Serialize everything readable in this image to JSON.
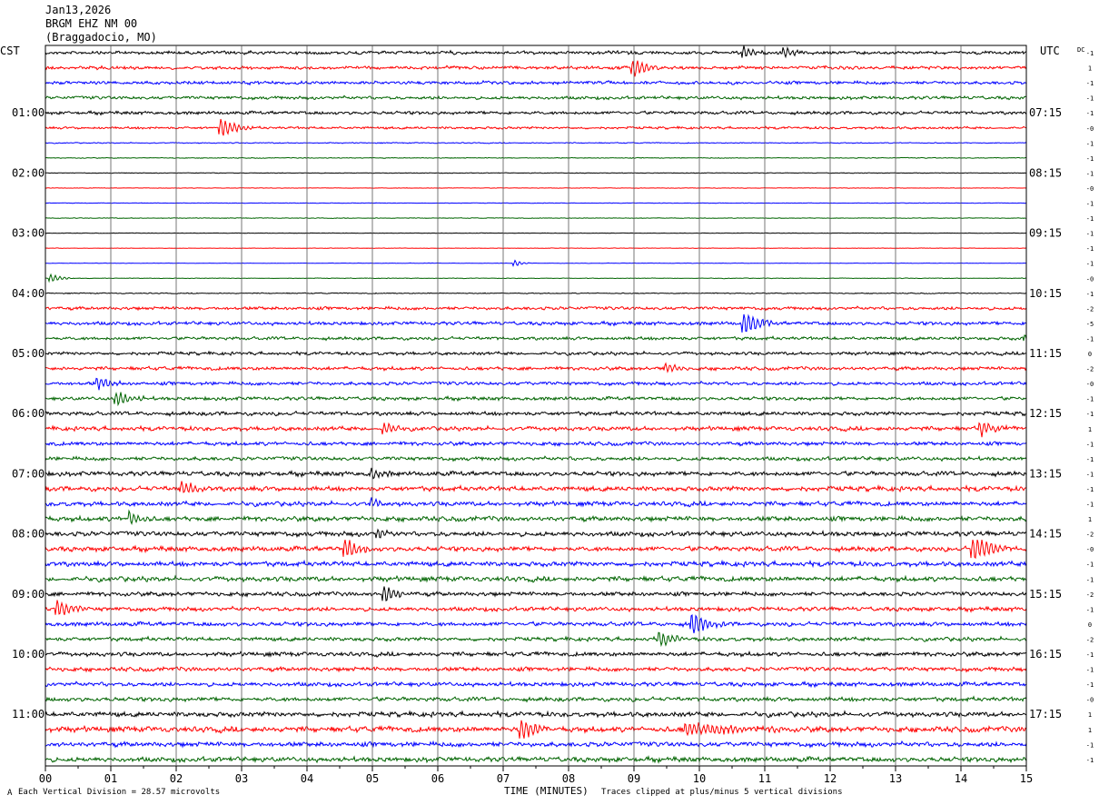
{
  "header": {
    "date": "Jan13,2026",
    "station": "BRGM EHZ NM 00",
    "location": "(Braggadocio, MO)"
  },
  "footer": {
    "scale_note": "Each Vertical Division =   28.57 microvolts",
    "xlabel": "TIME (MINUTES)",
    "clip_note": "Traces clipped at plus/minus 5 vertical divisions",
    "corner_mark": "A"
  },
  "colors": {
    "trace_cycle": [
      "#000000",
      "#ff0000",
      "#0000ff",
      "#006400"
    ],
    "grid": "#000000"
  },
  "chart_data": {
    "type": "line",
    "subtype": "helicorder",
    "left_axis_label": "CST",
    "right_axis_label": "UTC",
    "dc_label": "DC",
    "rows_per_hour": 4,
    "row_count": 48,
    "x_ticks": [
      "00",
      "01",
      "02",
      "03",
      "04",
      "05",
      "06",
      "07",
      "08",
      "09",
      "10",
      "11",
      "12",
      "13",
      "14",
      "15"
    ],
    "xlim": [
      0,
      15
    ],
    "hour_labels_left": [
      "01:00",
      "02:00",
      "03:00",
      "04:00",
      "05:00",
      "06:00",
      "07:00",
      "08:00",
      "09:00",
      "10:00",
      "11:00"
    ],
    "hour_labels_right": [
      "07:15",
      "08:15",
      "09:15",
      "10:15",
      "11:15",
      "12:15",
      "13:15",
      "14:15",
      "15:15",
      "16:15",
      "17:15"
    ],
    "dc_offsets": [
      "-1",
      "1",
      "-1",
      "-1",
      "-1",
      "-0",
      "-1",
      "-1",
      "-1",
      "-0",
      "-1",
      "-1",
      "-1",
      "-1",
      "-1",
      "-0",
      "-1",
      "-2",
      "-5",
      "-1",
      "0",
      "-2",
      "-0",
      "-1",
      "-1",
      "1",
      "-1",
      "-1",
      "-1",
      "-1",
      "-1",
      "1",
      "-2",
      "-0",
      "-1",
      "-1",
      "-2",
      "-1",
      "0",
      "-2",
      "-1",
      "-1",
      "-1",
      "-0",
      "1",
      "1",
      "-1",
      "-1"
    ],
    "amplitude_profile": [
      2,
      2,
      2,
      2,
      2,
      1.5,
      0.6,
      0.5,
      0.4,
      0.3,
      0.3,
      0.4,
      0.3,
      0.3,
      0.3,
      0.4,
      0.6,
      2,
      2.2,
      2,
      2,
      2.2,
      2.2,
      2.2,
      2.4,
      2.6,
      2.4,
      2.4,
      2.8,
      3,
      2.8,
      3,
      3,
      3,
      3,
      3,
      2.6,
      2.6,
      2.6,
      2.4,
      2.6,
      2.6,
      2.6,
      2.6,
      3,
      3.4,
      3,
      3
    ],
    "events": [
      {
        "row": 0,
        "minute": 10.7,
        "amp": 6,
        "dur": 0.3
      },
      {
        "row": 0,
        "minute": 11.3,
        "amp": 6,
        "dur": 0.3
      },
      {
        "row": 1,
        "minute": 9.0,
        "amp": 9,
        "dur": 0.4
      },
      {
        "row": 5,
        "minute": 2.7,
        "amp": 9,
        "dur": 0.5
      },
      {
        "row": 14,
        "minute": 7.2,
        "amp": 3,
        "dur": 0.2
      },
      {
        "row": 15,
        "minute": 0.1,
        "amp": 4,
        "dur": 0.3
      },
      {
        "row": 18,
        "minute": 10.7,
        "amp": 12,
        "dur": 0.5
      },
      {
        "row": 19,
        "minute": 15.0,
        "amp": 4,
        "dur": 0.2
      },
      {
        "row": 21,
        "minute": 9.5,
        "amp": 5,
        "dur": 0.3
      },
      {
        "row": 22,
        "minute": 0.8,
        "amp": 7,
        "dur": 0.4
      },
      {
        "row": 23,
        "minute": 1.1,
        "amp": 8,
        "dur": 0.4
      },
      {
        "row": 25,
        "minute": 5.2,
        "amp": 6,
        "dur": 0.3
      },
      {
        "row": 25,
        "minute": 14.3,
        "amp": 8,
        "dur": 0.4
      },
      {
        "row": 28,
        "minute": 5.0,
        "amp": 6,
        "dur": 0.3
      },
      {
        "row": 29,
        "minute": 2.1,
        "amp": 7,
        "dur": 0.4
      },
      {
        "row": 30,
        "minute": 5.0,
        "amp": 5,
        "dur": 0.3
      },
      {
        "row": 31,
        "minute": 1.3,
        "amp": 7,
        "dur": 0.3
      },
      {
        "row": 32,
        "minute": 5.1,
        "amp": 6,
        "dur": 0.3
      },
      {
        "row": 33,
        "minute": 4.6,
        "amp": 10,
        "dur": 0.4
      },
      {
        "row": 33,
        "minute": 14.2,
        "amp": 14,
        "dur": 0.5
      },
      {
        "row": 36,
        "minute": 5.2,
        "amp": 9,
        "dur": 0.4
      },
      {
        "row": 37,
        "minute": 0.2,
        "amp": 8,
        "dur": 0.4
      },
      {
        "row": 38,
        "minute": 9.9,
        "amp": 12,
        "dur": 0.5
      },
      {
        "row": 39,
        "minute": 9.4,
        "amp": 8,
        "dur": 0.4
      },
      {
        "row": 45,
        "minute": 7.3,
        "amp": 12,
        "dur": 0.4
      },
      {
        "row": 45,
        "minute": 9.8,
        "amp": 7,
        "dur": 1.5
      }
    ]
  }
}
